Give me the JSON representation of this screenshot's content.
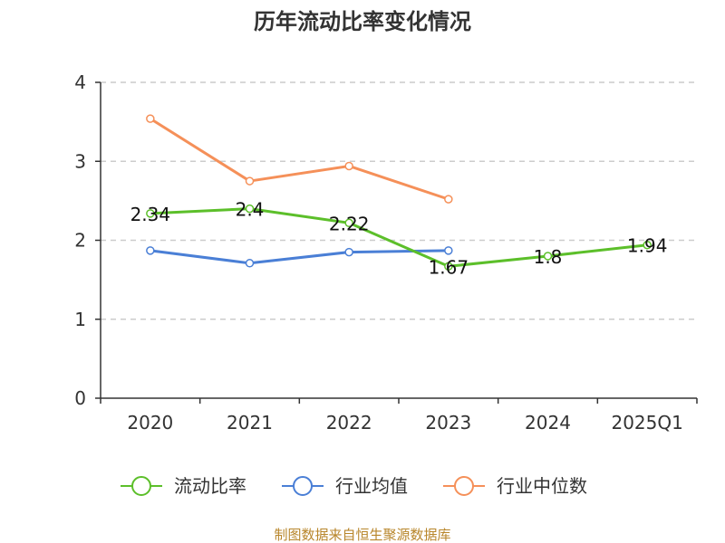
{
  "chart_data": {
    "type": "line",
    "title": "历年流动比率变化情况",
    "categories": [
      "2020",
      "2021",
      "2022",
      "2023",
      "2024",
      "2025Q1"
    ],
    "y_ticks": [
      "0",
      "1",
      "2",
      "3",
      "4"
    ],
    "ylim": [
      0,
      4
    ],
    "grid": true,
    "legend_position": "bottom",
    "series": [
      {
        "name": "流动比率",
        "color": "#5cbf2a",
        "values": [
          2.34,
          2.4,
          2.22,
          1.67,
          1.8,
          1.94
        ],
        "labels": [
          "2.34",
          "2.4",
          "2.22",
          "1.67",
          "1.8",
          "1.94"
        ]
      },
      {
        "name": "行业均值",
        "color": "#4a7fd6",
        "values": [
          1.87,
          1.71,
          1.85,
          1.87,
          null,
          null
        ]
      },
      {
        "name": "行业中位数",
        "color": "#f59059",
        "values": [
          3.54,
          2.75,
          2.94,
          2.52,
          null,
          null
        ]
      }
    ]
  },
  "source": "制图数据来自恒生聚源数据库"
}
